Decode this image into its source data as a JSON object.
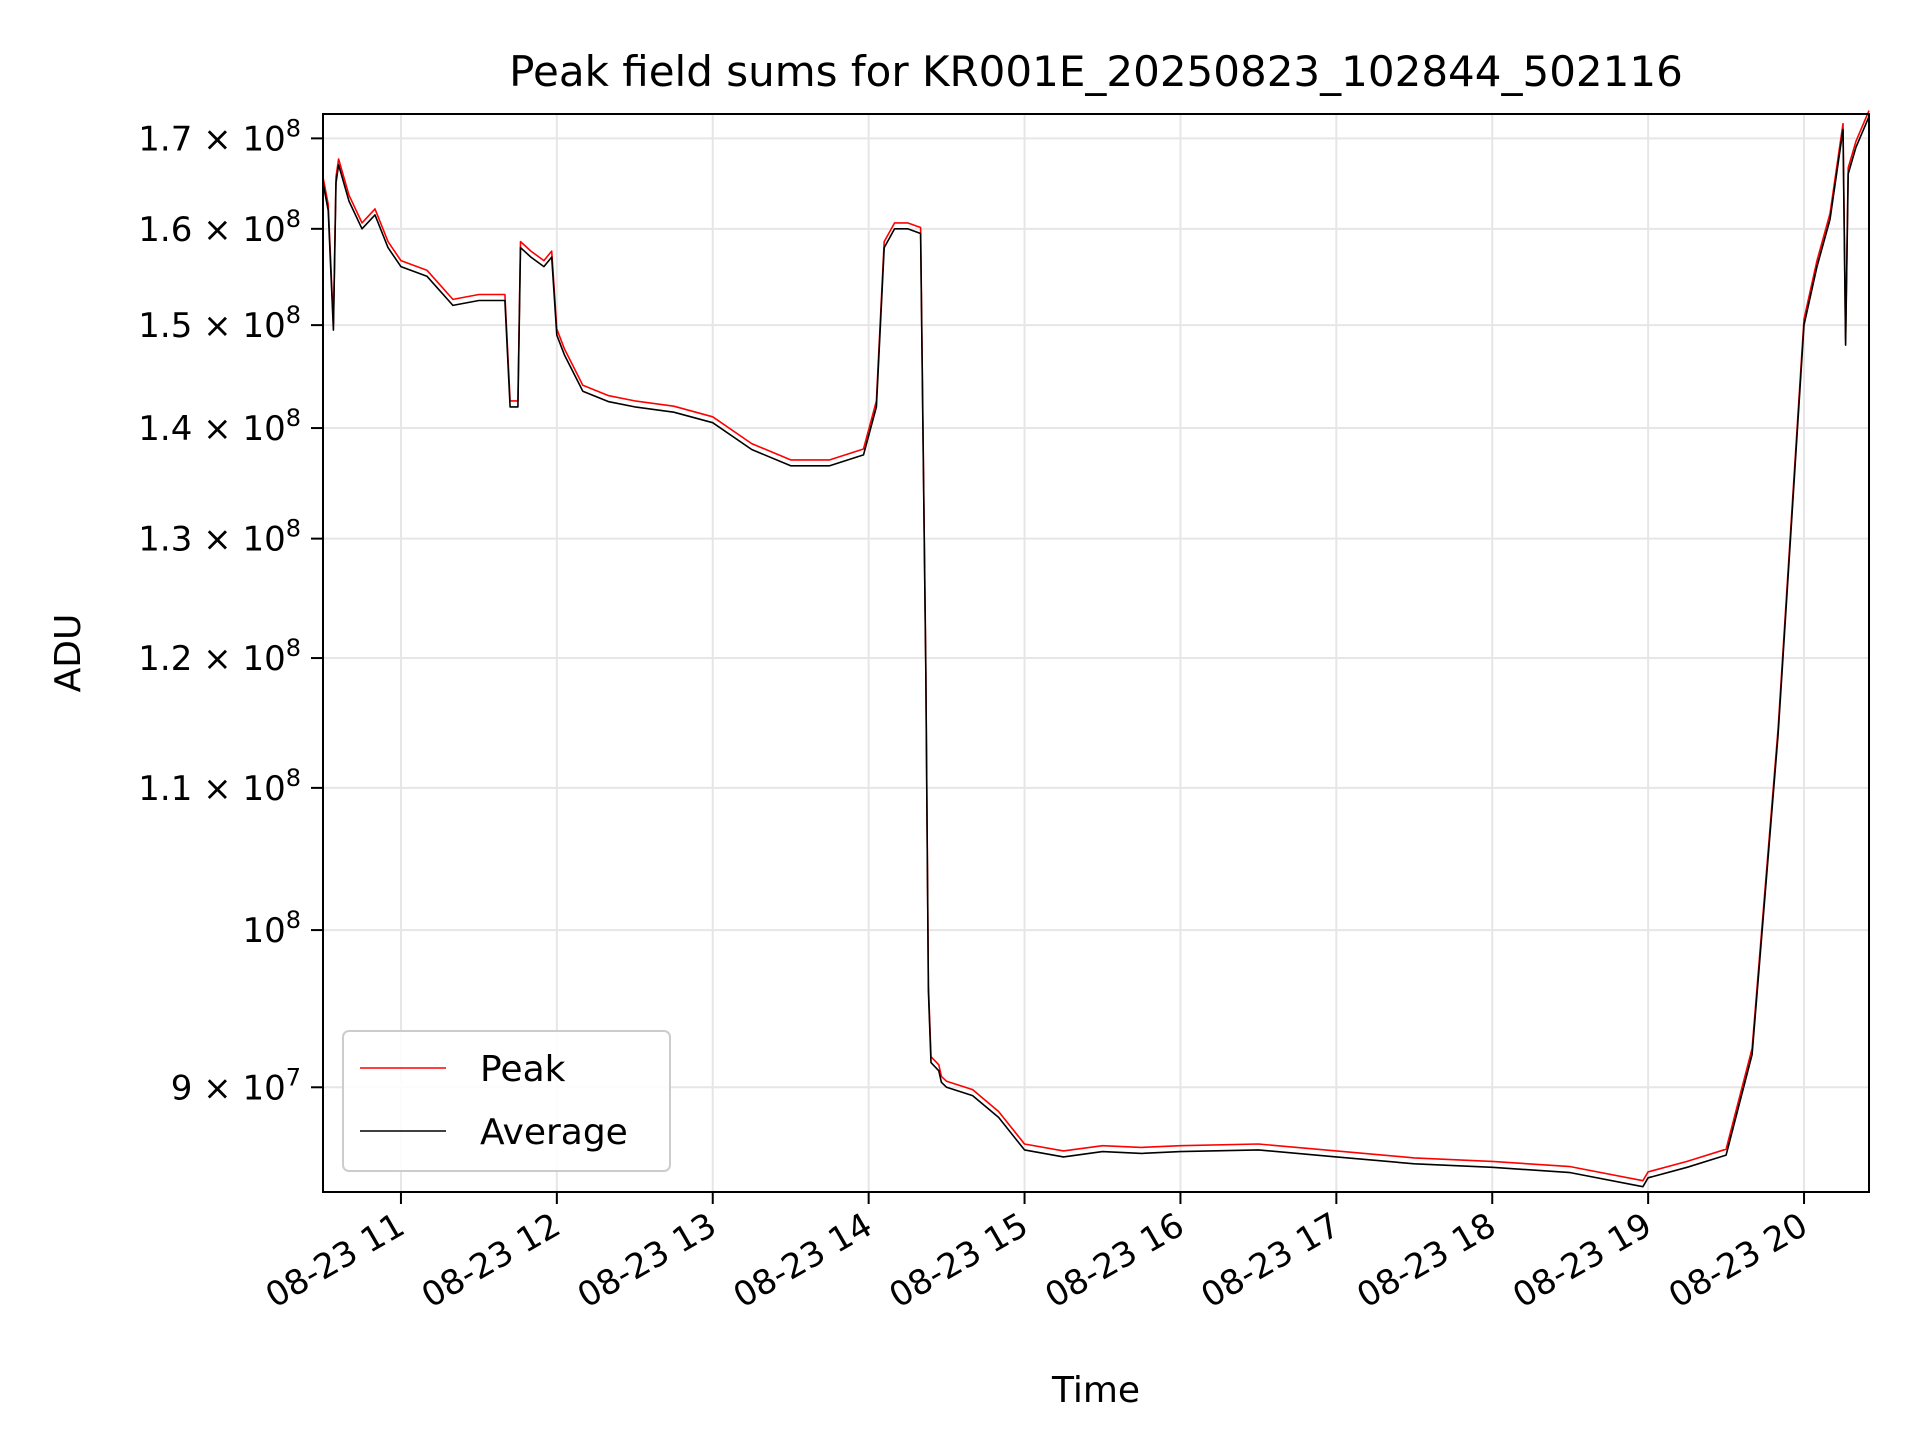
{
  "chart_data": {
    "type": "line",
    "title": "Peak field sums for KR001E_20250823_102844_502116",
    "xlabel": "Time",
    "ylabel": "ADU",
    "y_scale": "log",
    "grid": true,
    "legend_position": "lower-left",
    "xlim": [
      "2025-08-23 10:30",
      "2025-08-23 20:25"
    ],
    "ylim": [
      83900000,
      172800000
    ],
    "x_ticks": [
      {
        "value": "2025-08-23 11:00",
        "label": "08-23 11"
      },
      {
        "value": "2025-08-23 12:00",
        "label": "08-23 12"
      },
      {
        "value": "2025-08-23 13:00",
        "label": "08-23 13"
      },
      {
        "value": "2025-08-23 14:00",
        "label": "08-23 14"
      },
      {
        "value": "2025-08-23 15:00",
        "label": "08-23 15"
      },
      {
        "value": "2025-08-23 16:00",
        "label": "08-23 16"
      },
      {
        "value": "2025-08-23 17:00",
        "label": "08-23 17"
      },
      {
        "value": "2025-08-23 18:00",
        "label": "08-23 18"
      },
      {
        "value": "2025-08-23 19:00",
        "label": "08-23 19"
      },
      {
        "value": "2025-08-23 20:00",
        "label": "08-23 20"
      }
    ],
    "y_ticks": [
      {
        "value": 170000000,
        "mantissa": "1.7",
        "exp": "8"
      },
      {
        "value": 160000000,
        "mantissa": "1.6",
        "exp": "8"
      },
      {
        "value": 150000000,
        "mantissa": "1.5",
        "exp": "8"
      },
      {
        "value": 140000000,
        "mantissa": "1.4",
        "exp": "8"
      },
      {
        "value": 130000000,
        "mantissa": "1.3",
        "exp": "8"
      },
      {
        "value": 120000000,
        "mantissa": "1.2",
        "exp": "8"
      },
      {
        "value": 110000000,
        "mantissa": "1.1",
        "exp": "8"
      },
      {
        "value": 100000000,
        "mantissa": "",
        "exp": "8"
      },
      {
        "value": 90000000,
        "mantissa": "9",
        "exp": "7"
      }
    ],
    "series": [
      {
        "name": "Peak",
        "color": "#ff0000"
      },
      {
        "name": "Average",
        "color": "#000000"
      }
    ],
    "x": [
      "2025-08-23 10:30",
      "2025-08-23 10:32",
      "2025-08-23 10:34",
      "2025-08-23 10:35",
      "2025-08-23 10:36",
      "2025-08-23 10:40",
      "2025-08-23 10:45",
      "2025-08-23 10:50",
      "2025-08-23 10:55",
      "2025-08-23 11:00",
      "2025-08-23 11:10",
      "2025-08-23 11:20",
      "2025-08-23 11:30",
      "2025-08-23 11:40",
      "2025-08-23 11:42",
      "2025-08-23 11:45",
      "2025-08-23 11:46",
      "2025-08-23 11:50",
      "2025-08-23 11:55",
      "2025-08-23 11:58",
      "2025-08-23 12:00",
      "2025-08-23 12:03",
      "2025-08-23 12:06",
      "2025-08-23 12:10",
      "2025-08-23 12:20",
      "2025-08-23 12:30",
      "2025-08-23 12:45",
      "2025-08-23 13:00",
      "2025-08-23 13:15",
      "2025-08-23 13:30",
      "2025-08-23 13:45",
      "2025-08-23 13:58",
      "2025-08-23 14:03",
      "2025-08-23 14:06",
      "2025-08-23 14:10",
      "2025-08-23 14:15",
      "2025-08-23 14:20",
      "2025-08-23 14:22",
      "2025-08-23 14:23",
      "2025-08-23 14:24",
      "2025-08-23 14:27",
      "2025-08-23 14:28",
      "2025-08-23 14:30",
      "2025-08-23 14:40",
      "2025-08-23 14:50",
      "2025-08-23 15:00",
      "2025-08-23 15:15",
      "2025-08-23 15:30",
      "2025-08-23 15:45",
      "2025-08-23 16:00",
      "2025-08-23 16:30",
      "2025-08-23 17:00",
      "2025-08-23 17:30",
      "2025-08-23 18:00",
      "2025-08-23 18:30",
      "2025-08-23 18:58",
      "2025-08-23 19:00",
      "2025-08-23 19:15",
      "2025-08-23 19:30",
      "2025-08-23 19:40",
      "2025-08-23 19:50",
      "2025-08-23 20:00",
      "2025-08-23 20:05",
      "2025-08-23 20:10",
      "2025-08-23 20:15",
      "2025-08-23 20:16",
      "2025-08-23 20:17",
      "2025-08-23 20:20",
      "2025-08-23 20:25"
    ],
    "y": [
      165000000,
      162000000,
      149500000,
      165000000,
      167000000,
      163000000,
      160000000,
      161500000,
      158000000,
      156000000,
      155000000,
      152000000,
      152500000,
      152500000,
      142000000,
      142000000,
      158000000,
      157000000,
      156000000,
      157000000,
      149000000,
      147000000,
      145500000,
      143500000,
      142500000,
      142000000,
      141500000,
      140500000,
      138000000,
      136500000,
      136500000,
      137500000,
      142000000,
      158000000,
      160000000,
      160000000,
      159500000,
      119000000,
      96000000,
      91500000,
      91000000,
      90300000,
      90000000,
      89500000,
      88200000,
      86300000,
      85900000,
      86200000,
      86100000,
      86200000,
      86300000,
      85900000,
      85500000,
      85300000,
      85000000,
      84200000,
      84700000,
      85300000,
      86000000,
      92000000,
      114000000,
      150000000,
      156000000,
      161000000,
      171000000,
      148000000,
      166000000,
      169000000,
      172500000
    ]
  }
}
